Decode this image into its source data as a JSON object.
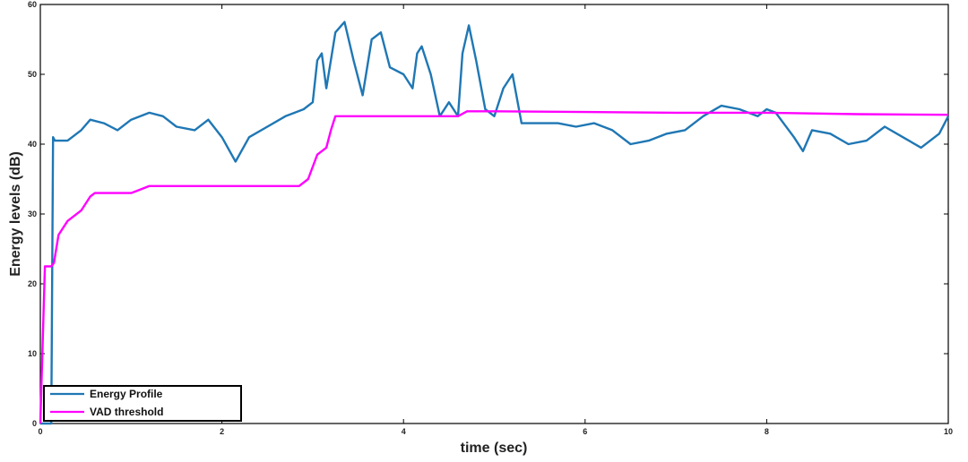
{
  "chart_data": {
    "type": "line",
    "xlabel": "time (sec)",
    "ylabel": "Energy levels (dB)",
    "xlim": [
      0,
      10
    ],
    "ylim": [
      0,
      60
    ],
    "xticks": [
      "0",
      "2",
      "4",
      "6",
      "8",
      "10"
    ],
    "yticks": [
      "0",
      "10",
      "20",
      "30",
      "40",
      "50",
      "60"
    ],
    "grid": false,
    "legend_position": "bottom-left",
    "colors": {
      "energy": "#1f77b4",
      "threshold": "#ff00ff"
    },
    "series": [
      {
        "name": "Energy Profile",
        "x": [
          0,
          0.12,
          0.14,
          0.16,
          0.3,
          0.45,
          0.55,
          0.7,
          0.85,
          1.0,
          1.2,
          1.35,
          1.5,
          1.7,
          1.85,
          2.0,
          2.15,
          2.3,
          2.5,
          2.7,
          2.9,
          3.0,
          3.05,
          3.1,
          3.15,
          3.25,
          3.35,
          3.45,
          3.55,
          3.65,
          3.75,
          3.85,
          4.0,
          4.1,
          4.15,
          4.2,
          4.3,
          4.4,
          4.5,
          4.6,
          4.65,
          4.72,
          4.8,
          4.9,
          5.0,
          5.1,
          5.2,
          5.3,
          5.5,
          5.7,
          5.9,
          6.1,
          6.3,
          6.5,
          6.7,
          6.9,
          7.1,
          7.3,
          7.5,
          7.7,
          7.9,
          8.0,
          8.1,
          8.3,
          8.4,
          8.5,
          8.7,
          8.9,
          9.1,
          9.3,
          9.5,
          9.7,
          9.9,
          10.0
        ],
        "y": [
          0,
          0,
          41,
          40.5,
          40.5,
          42,
          43.5,
          43,
          42,
          43.5,
          44.5,
          44,
          42.5,
          42,
          43.5,
          41,
          37.5,
          41,
          42.5,
          44,
          45,
          46,
          52,
          53,
          48,
          56,
          57.5,
          52,
          47,
          55,
          56,
          51,
          50,
          48,
          53,
          54,
          50,
          44,
          46,
          44,
          53,
          57,
          52,
          45,
          44,
          48,
          50,
          43,
          43,
          43,
          42.5,
          43,
          42,
          40,
          40.5,
          41.5,
          42,
          44,
          45.5,
          45,
          44,
          45,
          44.5,
          41,
          39,
          42,
          41.5,
          40,
          40.5,
          42.5,
          41,
          39.5,
          41.5,
          44
        ]
      },
      {
        "name": "VAD threshold",
        "x": [
          0,
          0.05,
          0.12,
          0.15,
          0.2,
          0.3,
          0.45,
          0.55,
          0.6,
          0.8,
          1.0,
          1.1,
          1.2,
          1.5,
          2.0,
          2.5,
          2.85,
          2.95,
          3.05,
          3.15,
          3.2,
          3.25,
          3.5,
          4.0,
          4.5,
          4.6,
          4.7,
          5.0,
          6.0,
          7.0,
          8.0,
          9.0,
          10.0
        ],
        "y": [
          0,
          22.5,
          22.5,
          23,
          27,
          29,
          30.5,
          32.5,
          33,
          33,
          33,
          33.5,
          34,
          34,
          34,
          34,
          34,
          35,
          38.5,
          39.5,
          42,
          44,
          44,
          44,
          44,
          44,
          44.7,
          44.7,
          44.6,
          44.5,
          44.5,
          44.3,
          44.2
        ]
      }
    ]
  }
}
